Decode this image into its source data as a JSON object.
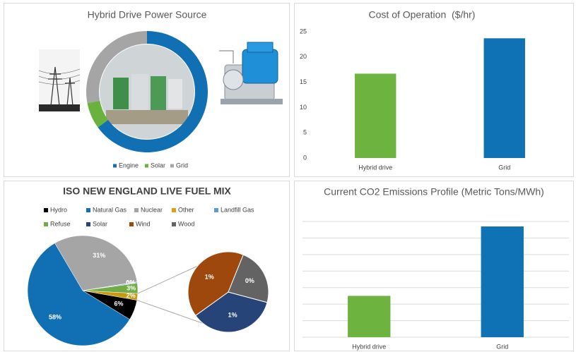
{
  "chart_data": [
    {
      "type": "donut",
      "title": "Hybrid Drive Power Source",
      "categories": [
        "Engine",
        "Solar",
        "Grid"
      ],
      "values": [
        65,
        7,
        28
      ],
      "colors": [
        "#1170b3",
        "#6ab23e",
        "#a5a5a5"
      ],
      "legend": "bottom"
    },
    {
      "type": "bar",
      "title": "Cost of Operation  ($/hr)",
      "categories": [
        "Hybrid drive",
        "Grid"
      ],
      "values": [
        16.7,
        23.7
      ],
      "colors": [
        "#6db33f",
        "#0e72b5"
      ],
      "ylim": [
        0,
        25
      ],
      "yticks": [
        0,
        5,
        10,
        15,
        20,
        25
      ],
      "grid": false,
      "ytick_labels": true
    },
    {
      "type": "pie",
      "title": "ISO NEW ENGLAND LIVE FUEL MIX",
      "categories": [
        "Hydro",
        "Natural Gas",
        "Nuclear",
        "Other",
        "Landfill Gas",
        "Refuse",
        "Solar",
        "Wind",
        "Wood"
      ],
      "values": [
        6,
        58,
        31,
        0.1,
        0.3,
        3,
        0.7,
        0.8,
        0.45
      ],
      "value_labels": [
        "6%",
        "58%",
        "31%",
        "0%",
        "0%",
        "3%",
        "1%",
        "1%",
        "0%"
      ],
      "colors": [
        "#000000",
        "#1170b3",
        "#a5a5a5",
        "#e0a20a",
        "#5b9bd5",
        "#70ad47",
        "#264478",
        "#9e480e",
        "#636363"
      ],
      "secondary_slices": 3,
      "combined_label": "2%",
      "combined_color": "#c99a10",
      "legend": "top"
    },
    {
      "type": "bar",
      "title": "Current CO2 Emissions Profile (Metric Tons/MWh)",
      "categories": [
        "Hybrid drive",
        "Grid"
      ],
      "values": [
        0.25,
        0.67
      ],
      "colors": [
        "#6db33f",
        "#0e72b5"
      ],
      "ylim": [
        0,
        0.7
      ],
      "yticks": [
        0,
        0.1,
        0.2,
        0.3,
        0.4,
        0.5,
        0.6,
        0.7
      ],
      "grid": true,
      "ytick_labels": false
    }
  ]
}
